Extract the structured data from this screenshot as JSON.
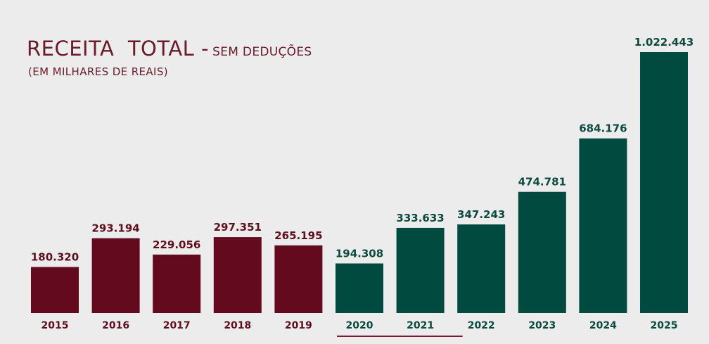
{
  "title": {
    "main": "RECEITA  TOTAL -",
    "sub": "SEM DEDUÇÕES"
  },
  "subtitle": "(EM MILHARES DE REAIS)",
  "colors": {
    "past": "#630a1e",
    "recent": "#014a3f",
    "text_past": "#5e0f1f",
    "text_recent": "#0c4a40",
    "underline": "#7a1a2e"
  },
  "chart_data": {
    "type": "bar",
    "title": "RECEITA  TOTAL - SEM DEDUÇÕES",
    "subtitle": "(EM MILHARES DE REAIS)",
    "categories": [
      "2015",
      "2016",
      "2017",
      "2018",
      "2019",
      "2020",
      "2021",
      "2022",
      "2023",
      "2024",
      "2025"
    ],
    "values": [
      180320,
      293194,
      229056,
      297351,
      265195,
      194308,
      333633,
      347243,
      474781,
      684176,
      1022443
    ],
    "labels": [
      "180.320",
      "293.194",
      "229.056",
      "297.351",
      "265.195",
      "194.308",
      "333.633",
      "347.243",
      "474.781",
      "684.176",
      "1.022.443"
    ],
    "color_groups": [
      "past",
      "past",
      "past",
      "past",
      "past",
      "recent",
      "recent",
      "recent",
      "recent",
      "recent",
      "recent"
    ],
    "underlined_categories": [
      "2020",
      "2021"
    ],
    "ylim": [
      0,
      1022443
    ],
    "grid": false,
    "legend": "none",
    "xlabel": "",
    "ylabel": ""
  }
}
